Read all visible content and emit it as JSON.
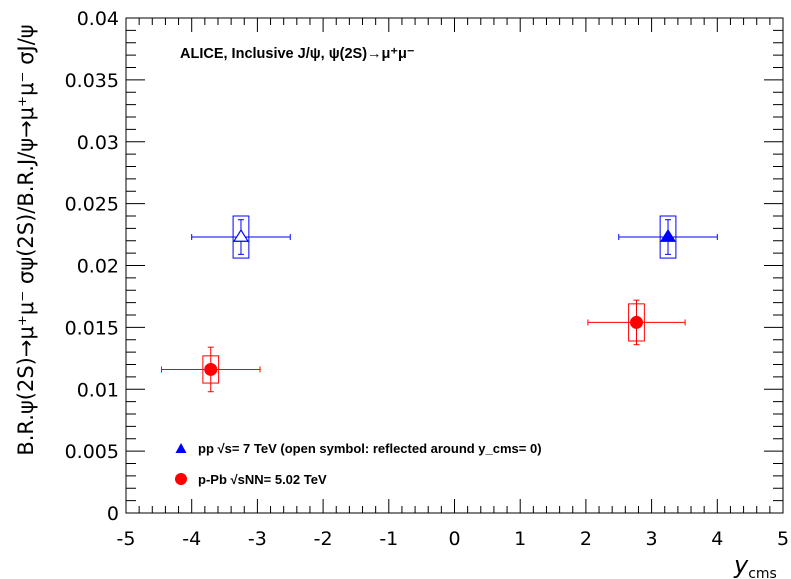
{
  "chart_data": {
    "type": "scatter",
    "xlabel": {
      "main": "y",
      "sub": "cms"
    },
    "ylabel": "B.R.ψ(2S)→μ⁺μ⁻ σψ(2S)/B.R.J/ψ→μ⁺μ⁻ σJ/ψ",
    "xlim": [
      -5,
      5
    ],
    "ylim": [
      0,
      0.04
    ],
    "x_ticks": [
      "-5",
      "-4",
      "-3",
      "-2",
      "-1",
      "0",
      "1",
      "2",
      "3",
      "4",
      "5"
    ],
    "y_ticks": [
      "0",
      "0.005",
      "0.01",
      "0.015",
      "0.02",
      "0.025",
      "0.03",
      "0.035",
      "0.04"
    ],
    "header": "ALICE, Inclusive J/ψ, ψ(2S)→μ⁺μ⁻",
    "legend_position": "bottom-left",
    "series": [
      {
        "name": "pp √s= 7 TeV (open symbol: reflected around y_cms= 0)",
        "color": "#0000ff",
        "marker": "triangle",
        "points": [
          {
            "x": -3.25,
            "y": 0.0223,
            "xerr": 0.75,
            "stat": 0.0014,
            "syst_x": 0.12,
            "syst_y": 0.0017,
            "open": true
          },
          {
            "x": 3.25,
            "y": 0.0223,
            "xerr": 0.75,
            "stat": 0.0014,
            "syst_x": 0.12,
            "syst_y": 0.0017,
            "open": false
          }
        ]
      },
      {
        "name": "p-Pb √sNN= 5.02 TeV",
        "color": "#ff0000",
        "marker": "circle",
        "points": [
          {
            "x": -3.71,
            "y": 0.0116,
            "xerr": 0.75,
            "stat": 0.0018,
            "syst_x": 0.12,
            "syst_y": 0.0011,
            "open": false
          },
          {
            "x": 2.77,
            "y": 0.0154,
            "xerr": 0.74,
            "stat": 0.0018,
            "syst_x": 0.12,
            "syst_y": 0.0015,
            "open": false
          }
        ]
      }
    ]
  }
}
